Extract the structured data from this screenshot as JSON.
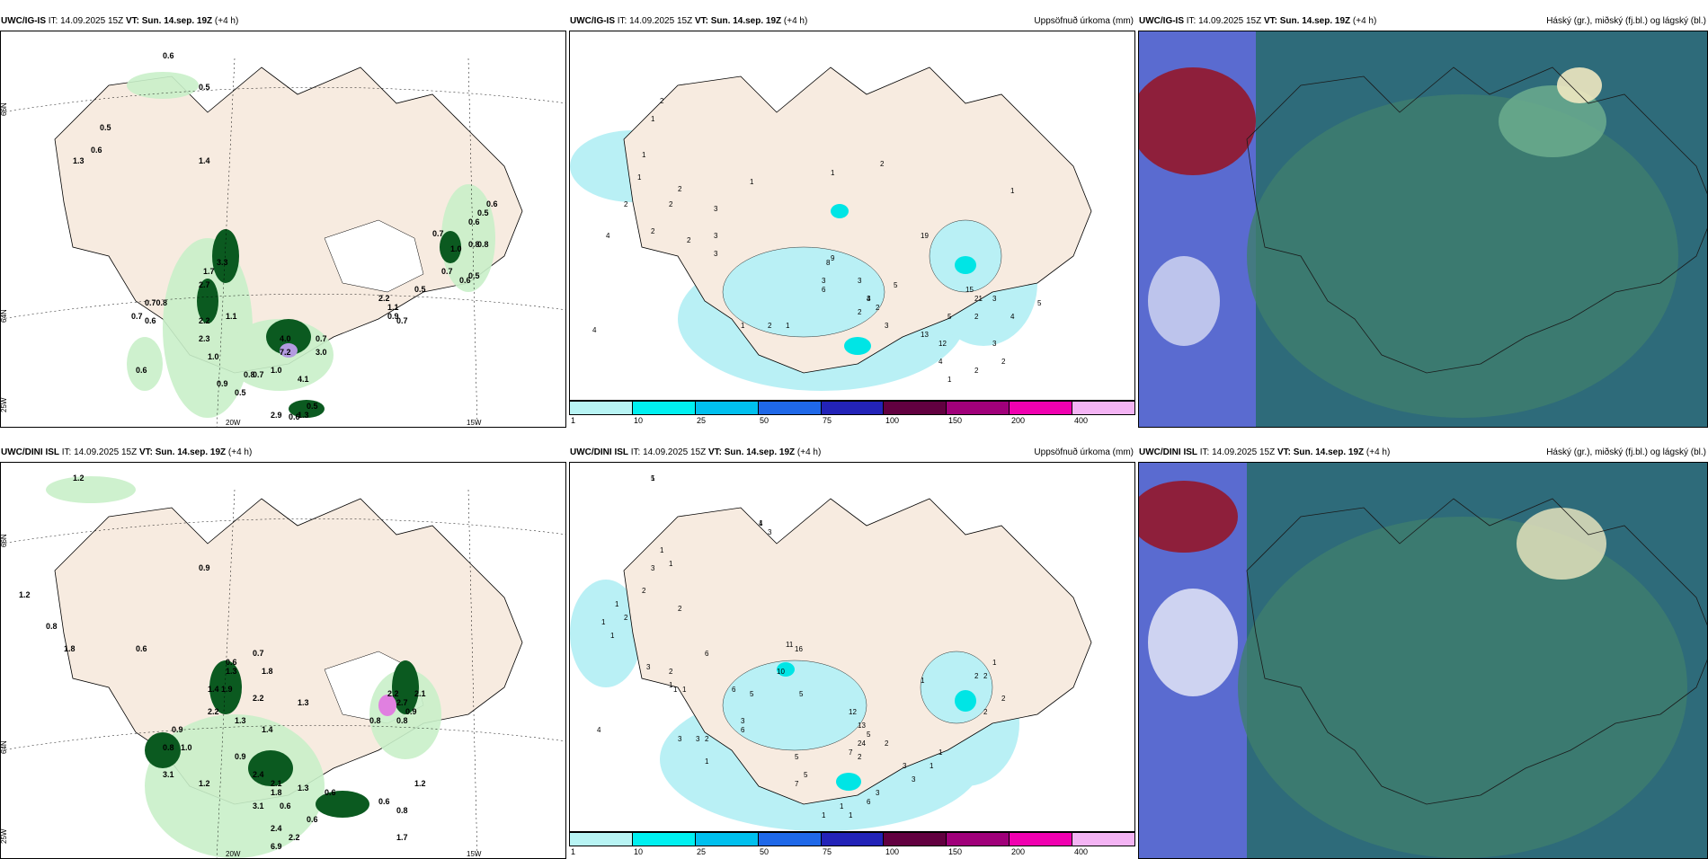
{
  "colors": {
    "land": "#f7ebe0",
    "precip_light": "#b9f0f5",
    "precip_mid": "#00e5e5",
    "green_light": "#c9f0c9",
    "green_dark": "#0b5a20",
    "cloud_high": "#5a6bd0",
    "cloud_mid": "#2e6b7a",
    "cloud_low": "#8e1f3b"
  },
  "rows": [
    {
      "model": "UWC/IG-IS",
      "issue": "IT: 14.09.2025 15Z",
      "vt_label": "VT:",
      "valid": "Sun. 14.sep. 19Z",
      "lead": "(+4 h)",
      "panel2_title": "Uppsöfnuð úrkoma (mm)",
      "panel3_title": "Háský (gr.), miðský (fj.bl.) og lágský (bl.)",
      "panel1_labels": [
        "0.6",
        "0.5",
        "0.5",
        "0.6",
        "1.3",
        "1.4",
        "0.6",
        "0.5",
        "0.6",
        "0.7",
        "1.0",
        "0.8",
        "0.7",
        "0.6",
        "0.5",
        "0.8",
        "3.3",
        "1.7",
        "2.7",
        "0.70.8",
        "0.7",
        "0.6",
        "1.1",
        "2.2",
        "2.3",
        "1.0",
        "0.9",
        "0.5",
        "0.8",
        "1.0",
        "4.0",
        "0.7",
        "7.2",
        "3.0",
        "4.1",
        "0.7",
        "0.6",
        "1.3",
        "2.9",
        "0.5",
        "2.2",
        "1.1",
        "0.5",
        "0.9",
        "0.7",
        "0.6"
      ],
      "panel2_labels": [
        "2",
        "1",
        "1",
        "1",
        "2",
        "4",
        "2",
        "2",
        "2",
        "3",
        "3",
        "3",
        "2",
        "1",
        "1",
        "2",
        "1",
        "2",
        "1",
        "4",
        "2",
        "2",
        "3",
        "6",
        "8",
        "9",
        "3",
        "3",
        "4",
        "5",
        "3",
        "13",
        "12",
        "19",
        "15",
        "21",
        "5",
        "2",
        "3",
        "4",
        "5",
        "3",
        "2",
        "4",
        "1",
        "2",
        "1"
      ],
      "axis_labels": {
        "lat66": "66N",
        "lat64": "64N",
        "lon20": "20W",
        "lon15": "15W",
        "lon25": "25W"
      }
    },
    {
      "model": "UWC/DINI ISL",
      "issue": "IT: 14.09.2025 15Z",
      "vt_label": "VT:",
      "valid": "Sun. 14.sep. 19Z",
      "lead": "(+4 h)",
      "panel2_title": "Uppsöfnuð úrkoma (mm)",
      "panel3_title": "Háský (gr.), miðský (fj.bl.) og lágský (bl.)",
      "panel1_labels": [
        "1.2",
        "0.9",
        "1.2",
        "0.8",
        "1.8",
        "0.6",
        "0.6",
        "0.7",
        "1.3",
        "1.8",
        "1.9",
        "1.4",
        "2.2",
        "1.3",
        "2.2",
        "1.3",
        "1.4",
        "0.9",
        "1.0",
        "0.8",
        "3.1",
        "1.2",
        "0.9",
        "2.4",
        "2.1",
        "1.8",
        "0.6",
        "3.1",
        "2.2",
        "2.1",
        "2.7",
        "0.8",
        "0.9",
        "0.8",
        "0.6",
        "0.6",
        "1.2",
        "0.8",
        "1.7",
        "2.4",
        "6.9",
        "2.2",
        "0.6",
        "1.3"
      ],
      "panel2_labels": [
        "1",
        "4",
        "3",
        "1",
        "1",
        "2",
        "1",
        "2",
        "1",
        "1",
        "3",
        "2",
        "3",
        "2",
        "1",
        "1",
        "11",
        "16",
        "10",
        "5",
        "6",
        "6",
        "5",
        "2",
        "3",
        "3",
        "1",
        "4",
        "1",
        "3",
        "6",
        "5",
        "5",
        "7",
        "13",
        "7",
        "12",
        "24",
        "5",
        "2",
        "2",
        "1",
        "1",
        "3",
        "3",
        "3",
        "6",
        "1",
        "1",
        "1",
        "1",
        "2",
        "2",
        "2",
        "2",
        "1",
        "5",
        "1"
      ],
      "axis_labels": {
        "lat66": "66N",
        "lat64": "64N",
        "lon20": "20W",
        "lon15": "15W",
        "lon25": "25W"
      }
    }
  ],
  "legend": {
    "swatch_colors": [
      "#b8f4f4",
      "#00f0f0",
      "#00c0ee",
      "#1f68e8",
      "#2323b8",
      "#620040",
      "#a0007a",
      "#f000b0",
      "#f4b4f4"
    ],
    "ticks": [
      "1",
      "10",
      "25",
      "50",
      "75",
      "100",
      "150",
      "200",
      "400"
    ]
  }
}
